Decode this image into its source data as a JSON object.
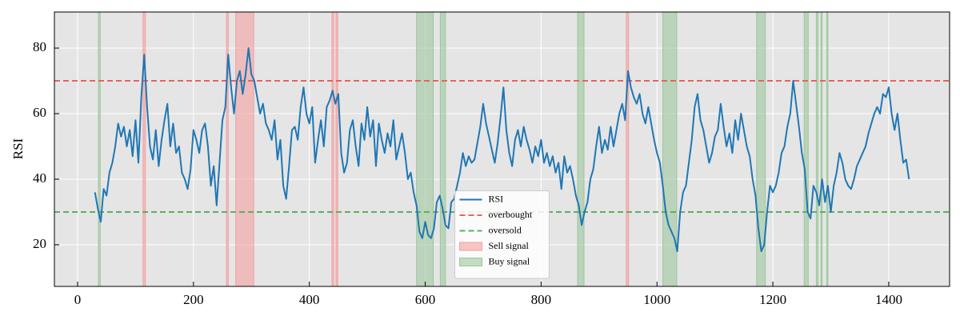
{
  "chart_data": {
    "type": "line",
    "ylabel": "RSI",
    "xlim": [
      -40,
      1505
    ],
    "ylim": [
      7.3,
      91
    ],
    "xticks": [
      0,
      200,
      400,
      600,
      800,
      1000,
      1200,
      1400
    ],
    "yticks": [
      20,
      40,
      60,
      80
    ],
    "grid": true,
    "legend": "lower center",
    "x": [
      30,
      35,
      40,
      45,
      50,
      55,
      60,
      65,
      70,
      75,
      80,
      85,
      90,
      95,
      100,
      105,
      110,
      115,
      120,
      125,
      130,
      135,
      140,
      145,
      150,
      155,
      160,
      165,
      170,
      175,
      180,
      185,
      190,
      195,
      200,
      205,
      210,
      215,
      220,
      225,
      230,
      235,
      240,
      245,
      250,
      255,
      260,
      265,
      270,
      275,
      280,
      285,
      290,
      295,
      300,
      305,
      310,
      315,
      320,
      325,
      330,
      335,
      340,
      345,
      350,
      355,
      360,
      365,
      370,
      375,
      380,
      385,
      390,
      395,
      400,
      405,
      410,
      415,
      420,
      425,
      430,
      435,
      440,
      445,
      450,
      455,
      460,
      465,
      470,
      475,
      480,
      485,
      490,
      495,
      500,
      505,
      510,
      515,
      520,
      525,
      530,
      535,
      540,
      545,
      550,
      555,
      560,
      565,
      570,
      575,
      580,
      585,
      590,
      595,
      600,
      605,
      610,
      615,
      620,
      625,
      630,
      635,
      640,
      645,
      650,
      655,
      660,
      665,
      670,
      675,
      680,
      685,
      690,
      695,
      700,
      705,
      710,
      715,
      720,
      725,
      730,
      735,
      740,
      745,
      750,
      755,
      760,
      765,
      770,
      775,
      780,
      785,
      790,
      795,
      800,
      805,
      810,
      815,
      820,
      825,
      830,
      835,
      840,
      845,
      850,
      855,
      860,
      865,
      870,
      875,
      880,
      885,
      890,
      895,
      900,
      905,
      910,
      915,
      920,
      925,
      930,
      935,
      940,
      945,
      950,
      955,
      960,
      965,
      970,
      975,
      980,
      985,
      990,
      995,
      1000,
      1005,
      1010,
      1015,
      1020,
      1025,
      1030,
      1035,
      1040,
      1045,
      1050,
      1055,
      1060,
      1065,
      1070,
      1075,
      1080,
      1085,
      1090,
      1095,
      1100,
      1105,
      1110,
      1115,
      1120,
      1125,
      1130,
      1135,
      1140,
      1145,
      1150,
      1155,
      1160,
      1165,
      1170,
      1175,
      1180,
      1185,
      1190,
      1195,
      1200,
      1205,
      1210,
      1215,
      1220,
      1225,
      1230,
      1235,
      1240,
      1245,
      1250,
      1255,
      1260,
      1265,
      1270,
      1275,
      1280,
      1285,
      1290,
      1295,
      1300,
      1305,
      1310,
      1315,
      1320,
      1325,
      1330,
      1335,
      1340,
      1345,
      1350,
      1355,
      1360,
      1365,
      1370,
      1375,
      1380,
      1385,
      1390,
      1395,
      1400,
      1405,
      1410,
      1415,
      1420,
      1425,
      1430,
      1435
    ],
    "series": [
      {
        "name": "RSI",
        "color": "#1f77b4",
        "values": [
          36,
          31,
          27,
          37,
          35,
          42,
          45,
          50,
          57,
          53,
          56,
          50,
          55,
          47,
          58,
          45,
          65,
          78,
          62,
          50,
          46,
          55,
          44,
          52,
          58,
          63,
          50,
          57,
          48,
          50,
          42,
          40,
          37,
          43,
          55,
          52,
          48,
          55,
          57,
          50,
          38,
          44,
          32,
          45,
          58,
          62,
          78,
          68,
          60,
          70,
          73,
          66,
          72,
          80,
          72,
          70,
          65,
          60,
          63,
          57,
          55,
          52,
          58,
          46,
          52,
          38,
          34,
          44,
          55,
          56,
          52,
          62,
          68,
          60,
          57,
          62,
          45,
          52,
          58,
          50,
          62,
          64,
          67,
          63,
          66,
          48,
          42,
          45,
          55,
          58,
          50,
          44,
          57,
          52,
          62,
          53,
          58,
          44,
          57,
          52,
          48,
          54,
          50,
          58,
          46,
          50,
          54,
          48,
          40,
          42,
          36,
          32,
          24,
          22,
          27,
          23,
          22,
          25,
          33,
          35,
          31,
          26,
          25,
          33,
          34,
          38,
          42,
          48,
          44,
          47,
          45,
          46,
          51,
          56,
          63,
          57,
          53,
          49,
          45,
          51,
          59,
          68,
          55,
          48,
          44,
          52,
          55,
          50,
          56,
          52,
          49,
          45,
          50,
          47,
          52,
          45,
          48,
          44,
          47,
          42,
          45,
          37,
          47,
          42,
          44,
          40,
          35,
          32,
          26,
          30,
          33,
          40,
          43,
          50,
          56,
          48,
          52,
          49,
          56,
          50,
          55,
          60,
          63,
          58,
          73,
          68,
          65,
          63,
          66,
          60,
          57,
          62,
          57,
          52,
          48,
          45,
          38,
          30,
          26,
          24,
          22,
          18,
          30,
          36,
          38,
          45,
          52,
          62,
          66,
          58,
          55,
          50,
          45,
          48,
          53,
          55,
          63,
          56,
          50,
          54,
          48,
          58,
          52,
          60,
          55,
          50,
          47,
          40,
          35,
          25,
          18,
          20,
          30,
          38,
          36,
          38,
          42,
          48,
          50,
          56,
          60,
          70,
          63,
          56,
          48,
          43,
          30,
          28,
          38,
          36,
          32,
          40,
          33,
          38,
          30,
          38,
          42,
          48,
          45,
          40,
          38,
          37,
          40,
          44,
          46,
          48,
          50,
          54,
          57,
          60,
          62,
          60,
          66,
          65,
          68,
          60,
          55,
          60,
          52,
          45,
          46,
          40
        ]
      }
    ],
    "hlines": [
      {
        "name": "overbought",
        "value": 70,
        "color": "#e8625f"
      },
      {
        "name": "oversold",
        "value": 30,
        "color": "#5fae5f"
      }
    ],
    "spans": [
      {
        "name": "Sell signal",
        "color": "#f4a0a0",
        "ranges": [
          [
            113,
            117
          ],
          [
            257,
            260
          ],
          [
            273,
            304
          ],
          [
            439,
            442
          ],
          [
            446,
            449
          ],
          [
            947,
            951
          ]
        ]
      },
      {
        "name": "Buy signal",
        "color": "#9cc79c",
        "ranges": [
          [
            36,
            39
          ],
          [
            585,
            614
          ],
          [
            626,
            635
          ],
          [
            863,
            874
          ],
          [
            1010,
            1034
          ],
          [
            1172,
            1187
          ],
          [
            1254,
            1261
          ],
          [
            1275,
            1278
          ],
          [
            1283,
            1285
          ],
          [
            1293,
            1295
          ]
        ]
      }
    ]
  }
}
